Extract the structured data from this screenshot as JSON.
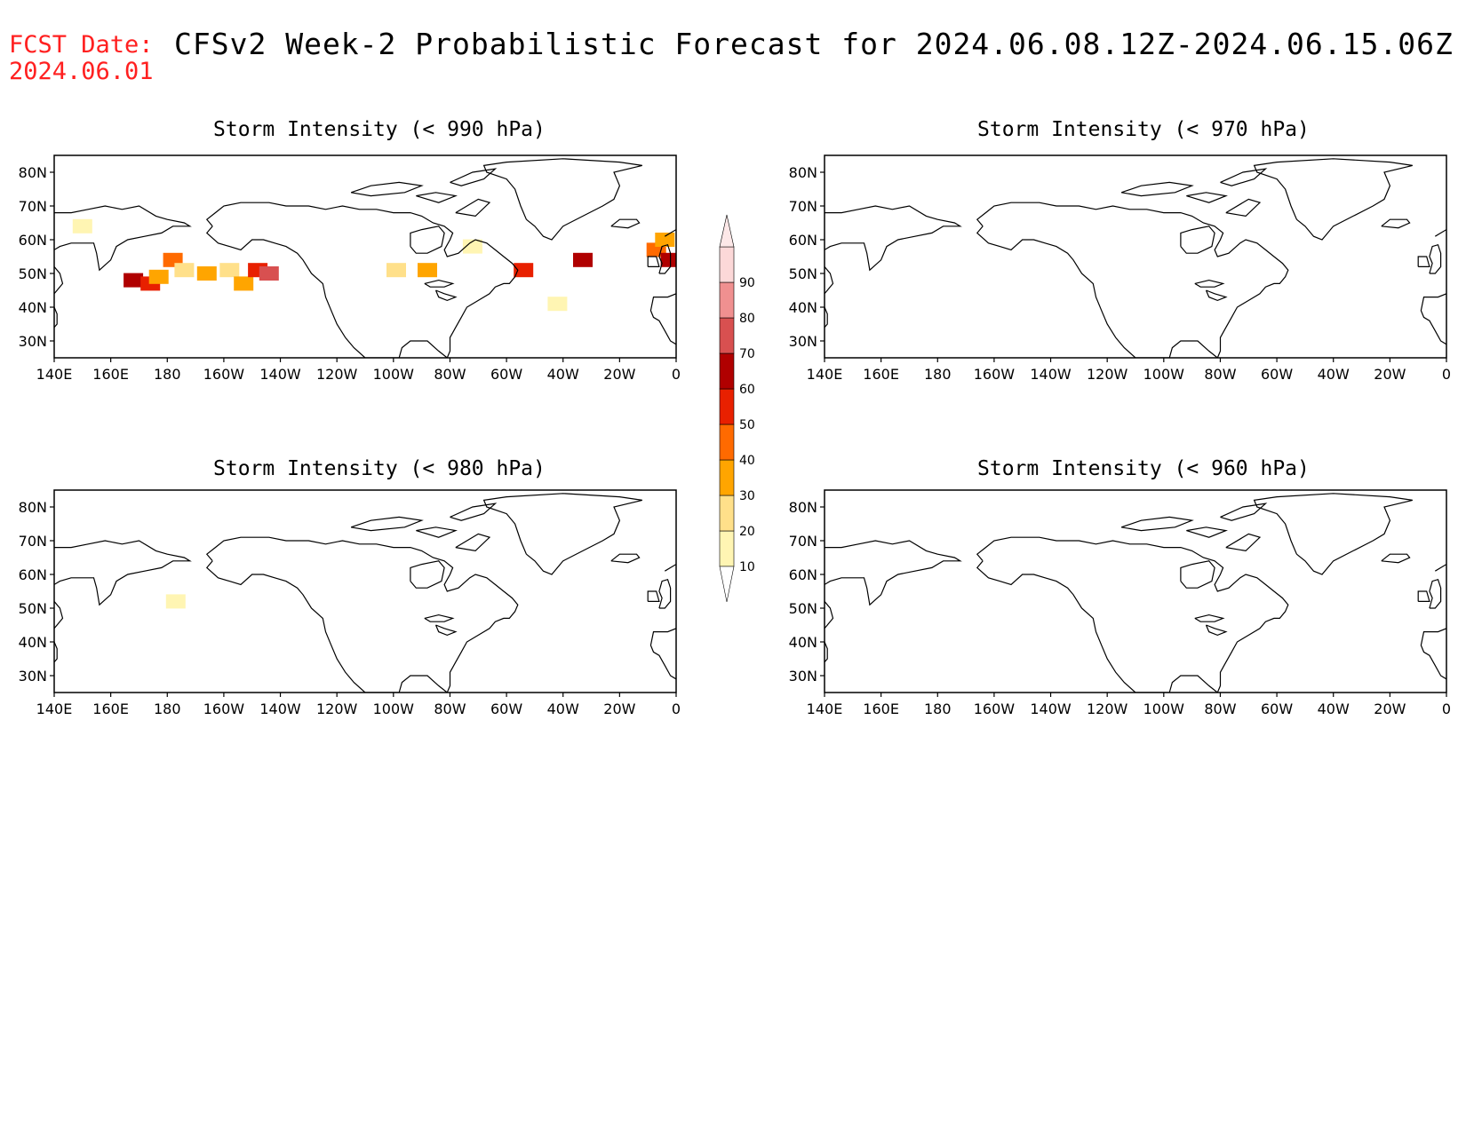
{
  "header": {
    "fcst_label": "FCST Date:",
    "fcst_date": "2024.06.01",
    "title": "CFSv2 Week-2 Probabilistic Forecast for 2024.06.08.12Z-2024.06.15.06Z"
  },
  "panels": [
    {
      "title": "Storm Intensity (< 990 hPa)",
      "threshold": "990 hPa"
    },
    {
      "title": "Storm Intensity (< 970 hPa)",
      "threshold": "970 hPa"
    },
    {
      "title": "Storm Intensity (< 980 hPa)",
      "threshold": "980 hPa"
    },
    {
      "title": "Storm Intensity (< 960 hPa)",
      "threshold": "960 hPa"
    }
  ],
  "axes": {
    "lat_ticks": [
      "80N",
      "70N",
      "60N",
      "50N",
      "40N",
      "30N"
    ],
    "lat_values": [
      80,
      70,
      60,
      50,
      40,
      30
    ],
    "lat_range": [
      25,
      85
    ],
    "lon_ticks": [
      "140E",
      "160E",
      "180",
      "160W",
      "140W",
      "120W",
      "100W",
      "80W",
      "60W",
      "40W",
      "20W",
      "0"
    ],
    "lon_values": [
      140,
      160,
      180,
      200,
      220,
      240,
      260,
      280,
      300,
      320,
      340,
      360
    ],
    "lon_range": [
      140,
      360
    ]
  },
  "colorbar": {
    "labels": [
      "10",
      "20",
      "30",
      "40",
      "50",
      "60",
      "70",
      "80",
      "90"
    ],
    "levels": [
      10,
      20,
      30,
      40,
      50,
      60,
      70,
      80,
      90
    ],
    "colors": [
      "#fff5b3",
      "#ffe08a",
      "#ffa500",
      "#ff6a00",
      "#e82000",
      "#b00000",
      "#d85050",
      "#f09090",
      "#fcd8d8"
    ]
  },
  "probability_patches_990": [
    {
      "lon": 168,
      "lat": 48,
      "prob": 60
    },
    {
      "lon": 174,
      "lat": 47,
      "prob": 50
    },
    {
      "lon": 177,
      "lat": 49,
      "prob": 30
    },
    {
      "lon": 182,
      "lat": 54,
      "prob": 40
    },
    {
      "lon": 186,
      "lat": 51,
      "prob": 20
    },
    {
      "lon": 194,
      "lat": 50,
      "prob": 30
    },
    {
      "lon": 202,
      "lat": 51,
      "prob": 20
    },
    {
      "lon": 207,
      "lat": 47,
      "prob": 30
    },
    {
      "lon": 212,
      "lat": 51,
      "prob": 50
    },
    {
      "lon": 216,
      "lat": 50,
      "prob": 70
    },
    {
      "lon": 150,
      "lat": 64,
      "prob": 10
    },
    {
      "lon": 261,
      "lat": 51,
      "prob": 20
    },
    {
      "lon": 272,
      "lat": 51,
      "prob": 30
    },
    {
      "lon": 288,
      "lat": 58,
      "prob": 10
    },
    {
      "lon": 306,
      "lat": 51,
      "prob": 50
    },
    {
      "lon": 327,
      "lat": 54,
      "prob": 60
    },
    {
      "lon": 353,
      "lat": 57,
      "prob": 40
    },
    {
      "lon": 358,
      "lat": 54,
      "prob": 60
    },
    {
      "lon": 356,
      "lat": 60,
      "prob": 30
    },
    {
      "lon": 318,
      "lat": 41,
      "prob": 10
    }
  ],
  "probability_patches_980": [
    {
      "lon": 183,
      "lat": 52,
      "prob": 10
    }
  ]
}
